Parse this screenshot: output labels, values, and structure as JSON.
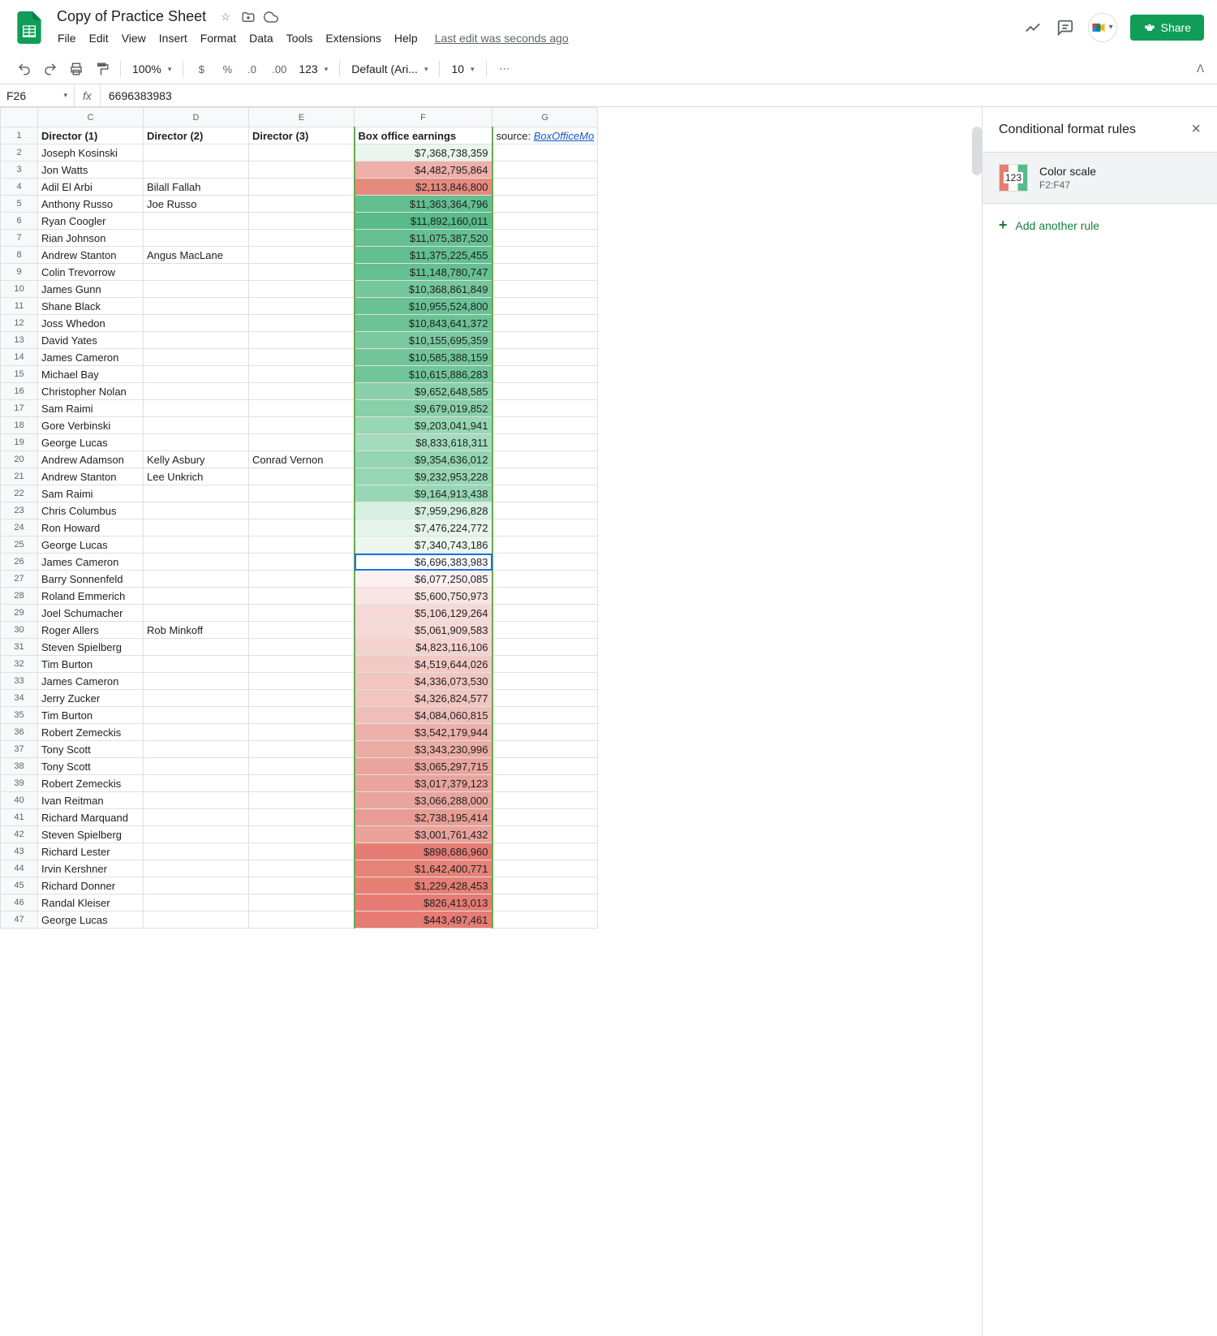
{
  "doc": {
    "title": "Copy of Practice Sheet",
    "last_edit": "Last edit was seconds ago"
  },
  "menu": [
    "File",
    "Edit",
    "View",
    "Insert",
    "Format",
    "Data",
    "Tools",
    "Extensions",
    "Help"
  ],
  "share_label": "Share",
  "toolbar": {
    "zoom": "100%",
    "font": "Default (Ari...",
    "font_size": "10",
    "number_format": "123"
  },
  "formula": {
    "name_box": "F26",
    "value": "6696383983"
  },
  "columns": [
    "C",
    "D",
    "E",
    "F",
    "G"
  ],
  "headers": {
    "c": "Director (1)",
    "d": "Director (2)",
    "e": "Director (3)",
    "f": "Box office earnings",
    "g_label": "source:",
    "g_link": "BoxOfficeMo"
  },
  "selected_cell": "F26",
  "rows": [
    {
      "n": 2,
      "c": "Joseph Kosinski",
      "d": "",
      "e": "",
      "f": "$7,368,738,359",
      "bg": "#eaf5ed"
    },
    {
      "n": 3,
      "c": "Jon Watts",
      "d": "",
      "e": "",
      "f": "$4,482,795,864",
      "bg": "#eeb0a8"
    },
    {
      "n": 4,
      "c": "Adil El Arbi",
      "d": "Bilall Fallah",
      "e": "",
      "f": "$2,113,846,800",
      "bg": "#e78a7e"
    },
    {
      "n": 5,
      "c": "Anthony Russo",
      "d": "Joe Russo",
      "e": "",
      "f": "$11,363,364,796",
      "bg": "#63bf90"
    },
    {
      "n": 6,
      "c": "Ryan Coogler",
      "d": "",
      "e": "",
      "f": "$11,892,160,011",
      "bg": "#57bb8a"
    },
    {
      "n": 7,
      "c": "Rian Johnson",
      "d": "",
      "e": "",
      "f": "$11,075,387,520",
      "bg": "#66c092"
    },
    {
      "n": 8,
      "c": "Andrew Stanton",
      "d": "Angus MacLane",
      "e": "",
      "f": "$11,375,225,455",
      "bg": "#62bf90"
    },
    {
      "n": 9,
      "c": "Colin Trevorrow",
      "d": "",
      "e": "",
      "f": "$11,148,780,747",
      "bg": "#65c091"
    },
    {
      "n": 10,
      "c": "James Gunn",
      "d": "",
      "e": "",
      "f": "$10,368,861,849",
      "bg": "#75c79c"
    },
    {
      "n": 11,
      "c": "Shane Black",
      "d": "",
      "e": "",
      "f": "$10,955,524,800",
      "bg": "#69c194"
    },
    {
      "n": 12,
      "c": "Joss Whedon",
      "d": "",
      "e": "",
      "f": "$10,843,641,372",
      "bg": "#6bc295"
    },
    {
      "n": 13,
      "c": "David Yates",
      "d": "",
      "e": "",
      "f": "$10,155,695,359",
      "bg": "#7ac9a0"
    },
    {
      "n": 14,
      "c": "James Cameron",
      "d": "",
      "e": "",
      "f": "$10,585,388,159",
      "bg": "#71c599"
    },
    {
      "n": 15,
      "c": "Michael Bay",
      "d": "",
      "e": "",
      "f": "$10,615,886,283",
      "bg": "#70c599"
    },
    {
      "n": 16,
      "c": "Christopher Nolan",
      "d": "",
      "e": "",
      "f": "$9,652,648,585",
      "bg": "#8ad1ab"
    },
    {
      "n": 17,
      "c": "Sam Raimi",
      "d": "",
      "e": "",
      "f": "$9,679,019,852",
      "bg": "#89d0aa"
    },
    {
      "n": 18,
      "c": "Gore Verbinski",
      "d": "",
      "e": "",
      "f": "$9,203,041,941",
      "bg": "#97d7b4"
    },
    {
      "n": 19,
      "c": "George Lucas",
      "d": "",
      "e": "",
      "f": "$8,833,618,311",
      "bg": "#a3dcbd"
    },
    {
      "n": 20,
      "c": "Andrew Adamson",
      "d": "Kelly Asbury",
      "e": "Conrad Vernon",
      "f": "$9,354,636,012",
      "bg": "#93d5b1"
    },
    {
      "n": 21,
      "c": "Andrew Stanton",
      "d": "Lee Unkrich",
      "e": "",
      "f": "$9,232,953,228",
      "bg": "#96d6b3"
    },
    {
      "n": 22,
      "c": "Sam Raimi",
      "d": "",
      "e": "",
      "f": "$9,164,913,438",
      "bg": "#98d7b5"
    },
    {
      "n": 23,
      "c": "Chris Columbus",
      "d": "",
      "e": "",
      "f": "$7,959,296,828",
      "bg": "#d7f0e1"
    },
    {
      "n": 24,
      "c": "Ron Howard",
      "d": "",
      "e": "",
      "f": "$7,476,224,772",
      "bg": "#e6f5eb"
    },
    {
      "n": 25,
      "c": "George Lucas",
      "d": "",
      "e": "",
      "f": "$7,340,743,186",
      "bg": "#ebf7ef"
    },
    {
      "n": 26,
      "c": "James Cameron",
      "d": "",
      "e": "",
      "f": "$6,696,383,983",
      "bg": "#ffffff",
      "selected": true
    },
    {
      "n": 27,
      "c": "Barry Sonnenfeld",
      "d": "",
      "e": "",
      "f": "$6,077,250,085",
      "bg": "#fcf1f0"
    },
    {
      "n": 28,
      "c": "Roland Emmerich",
      "d": "",
      "e": "",
      "f": "$5,600,750,973",
      "bg": "#f9e5e3"
    },
    {
      "n": 29,
      "c": "Joel Schumacher",
      "d": "",
      "e": "",
      "f": "$5,106,129,264",
      "bg": "#f6d9d6"
    },
    {
      "n": 30,
      "c": "Roger Allers",
      "d": "Rob Minkoff",
      "e": "",
      "f": "$5,061,909,583",
      "bg": "#f6d8d5"
    },
    {
      "n": 31,
      "c": "Steven Spielberg",
      "d": "",
      "e": "",
      "f": "$4,823,116,106",
      "bg": "#f4d2ce"
    },
    {
      "n": 32,
      "c": "Tim Burton",
      "d": "",
      "e": "",
      "f": "$4,519,644,026",
      "bg": "#f2cac5"
    },
    {
      "n": 33,
      "c": "James Cameron",
      "d": "",
      "e": "",
      "f": "$4,336,073,530",
      "bg": "#f1c5c0"
    },
    {
      "n": 34,
      "c": "Jerry Zucker",
      "d": "",
      "e": "",
      "f": "$4,326,824,577",
      "bg": "#f1c5c0"
    },
    {
      "n": 35,
      "c": "Tim Burton",
      "d": "",
      "e": "",
      "f": "$4,084,060,815",
      "bg": "#efbeb8"
    },
    {
      "n": 36,
      "c": "Robert Zemeckis",
      "d": "",
      "e": "",
      "f": "$3,542,179,944",
      "bg": "#ecb1aa"
    },
    {
      "n": 37,
      "c": "Tony Scott",
      "d": "",
      "e": "",
      "f": "$3,343,230,996",
      "bg": "#ebaca4"
    },
    {
      "n": 38,
      "c": "Tony Scott",
      "d": "",
      "e": "",
      "f": "$3,065,297,715",
      "bg": "#e9a59d"
    },
    {
      "n": 39,
      "c": "Robert Zemeckis",
      "d": "",
      "e": "",
      "f": "$3,017,379,123",
      "bg": "#e9a49b"
    },
    {
      "n": 40,
      "c": "Ivan Reitman",
      "d": "",
      "e": "",
      "f": "$3,066,288,000",
      "bg": "#e9a59d"
    },
    {
      "n": 41,
      "c": "Richard Marquand",
      "d": "",
      "e": "",
      "f": "$2,738,195,414",
      "bg": "#e89d94"
    },
    {
      "n": 42,
      "c": "Steven Spielberg",
      "d": "",
      "e": "",
      "f": "$3,001,761,432",
      "bg": "#e9a39b"
    },
    {
      "n": 43,
      "c": "Richard Lester",
      "d": "",
      "e": "",
      "f": "$898,686,960",
      "bg": "#e67c73"
    },
    {
      "n": 44,
      "c": "Irvin Kershner",
      "d": "",
      "e": "",
      "f": "$1,642,400,771",
      "bg": "#e78378"
    },
    {
      "n": 45,
      "c": "Richard Donner",
      "d": "",
      "e": "",
      "f": "$1,229,428,453",
      "bg": "#e67f75"
    },
    {
      "n": 46,
      "c": "Randal Kleiser",
      "d": "",
      "e": "",
      "f": "$826,413,013",
      "bg": "#e67c73"
    },
    {
      "n": 47,
      "c": "George Lucas",
      "d": "",
      "e": "",
      "f": "$443,497,461",
      "bg": "#e67c73"
    }
  ],
  "side_panel": {
    "title": "Conditional format rules",
    "rule_preview_text": "123",
    "rule_name": "Color scale",
    "rule_range": "F2:F47",
    "add_rule": "Add another rule"
  }
}
